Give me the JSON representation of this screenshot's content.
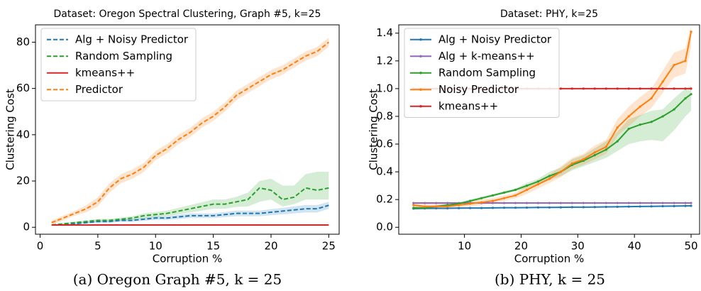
{
  "chart_data": [
    {
      "type": "line",
      "title": "Dataset: Oregon Spectral Clustering, Graph #5, k=25",
      "xlabel": "Corruption %",
      "ylabel": "Clustering Cost",
      "caption": "(a) Oregon Graph #5, k = 25",
      "x": [
        1,
        2,
        3,
        4,
        5,
        6,
        7,
        8,
        9,
        10,
        11,
        12,
        13,
        14,
        15,
        16,
        17,
        18,
        19,
        20,
        21,
        22,
        23,
        24,
        25
      ],
      "xlim": [
        -0.4,
        25.9
      ],
      "xticks": [
        0,
        5,
        10,
        15,
        20,
        25
      ],
      "ylim": [
        -3,
        87.5
      ],
      "yticks": [
        0,
        20,
        40,
        60,
        80
      ],
      "grid": false,
      "legend": "upper left",
      "series": [
        {
          "name": "Alg + Noisy Predictor",
          "color": "#1f77b4",
          "linestyle": "dashed",
          "values": [
            1,
            1.2,
            1.5,
            2,
            2.5,
            2.5,
            3,
            3,
            3.5,
            4,
            4,
            4.5,
            5,
            5,
            5,
            5.5,
            6,
            6,
            6,
            6.5,
            7,
            7.5,
            8,
            8,
            9.5
          ],
          "lower": [
            0.8,
            1,
            1.2,
            1.6,
            2,
            2,
            2.4,
            2.4,
            2.8,
            3.2,
            3.2,
            3.6,
            4,
            4,
            4,
            4.4,
            4.8,
            4.8,
            4.8,
            5.2,
            5.6,
            6,
            6.4,
            6.4,
            8
          ],
          "upper": [
            1.2,
            1.4,
            1.8,
            2.4,
            3,
            3,
            3.6,
            3.6,
            4.2,
            4.8,
            4.8,
            5.4,
            6,
            6,
            6,
            6.6,
            7.2,
            7.2,
            7.2,
            7.8,
            8.4,
            9,
            9.6,
            9.6,
            11
          ]
        },
        {
          "name": "Random Sampling",
          "color": "#2ca02c",
          "linestyle": "dashed",
          "values": [
            1,
            1.5,
            2,
            2.5,
            3,
            3,
            3.5,
            4,
            5,
            5.5,
            6,
            7,
            8,
            9,
            10,
            10,
            11,
            12,
            17,
            16,
            12,
            13,
            17,
            16,
            17
          ],
          "lower": [
            0.8,
            1.2,
            1.6,
            2,
            2.4,
            2.4,
            2.8,
            3.2,
            4,
            4.4,
            4.8,
            5.6,
            6.4,
            7.2,
            8,
            8,
            8.8,
            9,
            11,
            12,
            9,
            10,
            12,
            12,
            12
          ],
          "upper": [
            1.2,
            1.8,
            2.4,
            3,
            3.6,
            3.6,
            4.2,
            4.8,
            6,
            6.6,
            7.2,
            8.4,
            9.6,
            10.8,
            12,
            12,
            13.2,
            15,
            20,
            21,
            18,
            18,
            23,
            24,
            24
          ]
        },
        {
          "name": "kmeans++",
          "color": "#d62728",
          "linestyle": "solid",
          "values": [
            1,
            1,
            1,
            1,
            1,
            1,
            1,
            1,
            1,
            1,
            1,
            1,
            1,
            1,
            1,
            1,
            1,
            1,
            1,
            1,
            1,
            1,
            1,
            1,
            1
          ]
        },
        {
          "name": "Predictor",
          "color": "#ff7f0e",
          "linestyle": "dashed",
          "values": [
            2,
            4,
            6,
            8,
            11,
            17,
            21,
            23,
            26,
            31,
            34,
            38,
            41,
            45,
            48,
            52,
            57,
            60,
            63,
            66,
            68,
            71,
            74,
            76,
            80
          ],
          "lower": [
            1,
            3,
            5,
            6.5,
            9,
            15,
            19,
            21,
            24,
            29,
            32,
            36,
            39,
            43,
            46,
            50,
            55,
            58,
            61,
            64,
            66,
            69,
            72,
            74,
            78
          ],
          "upper": [
            3,
            5,
            7,
            9.5,
            13,
            19,
            23,
            25,
            28,
            33,
            36,
            40,
            43,
            47,
            50,
            54,
            59,
            62,
            65,
            68,
            70,
            73,
            76,
            78,
            82
          ]
        }
      ]
    },
    {
      "type": "line",
      "title": "Dataset: PHY, k=25",
      "xlabel": "Corruption %",
      "ylabel": "Clustering Cost",
      "caption": "(b) PHY, k = 25",
      "x": [
        1,
        3,
        5,
        7,
        9,
        11,
        13,
        15,
        17,
        19,
        21,
        23,
        25,
        27,
        29,
        31,
        33,
        35,
        37,
        39,
        41,
        43,
        45,
        47,
        49,
        50
      ],
      "xlim": [
        -1.6,
        51.5
      ],
      "xticks": [
        10,
        20,
        30,
        40,
        50
      ],
      "ylim": [
        -0.05,
        1.46
      ],
      "yticks": [
        {
          "value": 0,
          "label": "0.0"
        },
        {
          "value": 0.2,
          "label": "0.2"
        },
        {
          "value": 0.4,
          "label": "0.4"
        },
        {
          "value": 0.6,
          "label": "0.6"
        },
        {
          "value": 0.8,
          "label": "0.8"
        },
        {
          "value": 1,
          "label": "1.0"
        },
        {
          "value": 1.2,
          "label": "1.2"
        },
        {
          "value": 1.4,
          "label": "1.4"
        }
      ],
      "grid": false,
      "legend": "upper left",
      "marker": "dot",
      "series": [
        {
          "name": "Alg + Noisy Predictor",
          "color": "#1f77b4",
          "linestyle": "solid",
          "values": [
            0.135,
            0.136,
            0.137,
            0.137,
            0.138,
            0.139,
            0.139,
            0.14,
            0.141,
            0.141,
            0.142,
            0.143,
            0.143,
            0.144,
            0.145,
            0.145,
            0.146,
            0.147,
            0.148,
            0.149,
            0.15,
            0.151,
            0.152,
            0.153,
            0.154,
            0.155
          ]
        },
        {
          "name": "Alg + k-means++",
          "color": "#9467bd",
          "linestyle": "solid",
          "values": [
            0.175,
            0.175,
            0.175,
            0.175,
            0.175,
            0.175,
            0.175,
            0.175,
            0.175,
            0.175,
            0.175,
            0.175,
            0.175,
            0.175,
            0.175,
            0.175,
            0.175,
            0.175,
            0.175,
            0.175,
            0.175,
            0.175,
            0.175,
            0.175,
            0.175,
            0.175
          ]
        },
        {
          "name": "Random Sampling",
          "color": "#2ca02c",
          "linestyle": "solid",
          "values": [
            0.14,
            0.14,
            0.15,
            0.16,
            0.17,
            0.19,
            0.21,
            0.23,
            0.25,
            0.27,
            0.3,
            0.33,
            0.37,
            0.4,
            0.45,
            0.48,
            0.52,
            0.56,
            0.62,
            0.71,
            0.74,
            0.76,
            0.8,
            0.85,
            0.93,
            0.96
          ],
          "lower": [
            0.13,
            0.13,
            0.14,
            0.15,
            0.16,
            0.18,
            0.2,
            0.22,
            0.24,
            0.26,
            0.28,
            0.31,
            0.34,
            0.37,
            0.41,
            0.44,
            0.47,
            0.5,
            0.55,
            0.6,
            0.62,
            0.63,
            0.62,
            0.7,
            0.8,
            0.84
          ],
          "upper": [
            0.15,
            0.15,
            0.16,
            0.17,
            0.18,
            0.2,
            0.22,
            0.24,
            0.26,
            0.28,
            0.32,
            0.35,
            0.4,
            0.43,
            0.49,
            0.52,
            0.57,
            0.62,
            0.69,
            0.78,
            0.81,
            0.84,
            0.85,
            0.93,
            1.0,
            1.02
          ]
        },
        {
          "name": "Noisy Predictor",
          "color": "#ff7f0e",
          "linestyle": "solid",
          "values": [
            0.16,
            0.15,
            0.15,
            0.15,
            0.16,
            0.17,
            0.18,
            0.19,
            0.21,
            0.23,
            0.27,
            0.31,
            0.35,
            0.4,
            0.46,
            0.49,
            0.54,
            0.58,
            0.72,
            0.8,
            0.87,
            0.93,
            1.05,
            1.17,
            1.2,
            1.41
          ],
          "lower": [
            0.14,
            0.13,
            0.13,
            0.13,
            0.14,
            0.15,
            0.16,
            0.17,
            0.19,
            0.21,
            0.24,
            0.28,
            0.32,
            0.36,
            0.42,
            0.45,
            0.49,
            0.53,
            0.66,
            0.73,
            0.8,
            0.86,
            0.97,
            1.08,
            1.11,
            1.3
          ],
          "upper": [
            0.18,
            0.17,
            0.17,
            0.17,
            0.18,
            0.19,
            0.2,
            0.21,
            0.23,
            0.25,
            0.3,
            0.34,
            0.38,
            0.44,
            0.5,
            0.53,
            0.59,
            0.63,
            0.78,
            0.87,
            0.94,
            1.0,
            1.13,
            1.26,
            1.29,
            1.45
          ]
        },
        {
          "name": "kmeans++",
          "color": "#d62728",
          "linestyle": "solid",
          "values": [
            1,
            1,
            1,
            1,
            1,
            1,
            1,
            1,
            1,
            1,
            1,
            1,
            1,
            1,
            1,
            1,
            1,
            1,
            1,
            1,
            1,
            1,
            1,
            1,
            1,
            1
          ]
        }
      ]
    }
  ]
}
